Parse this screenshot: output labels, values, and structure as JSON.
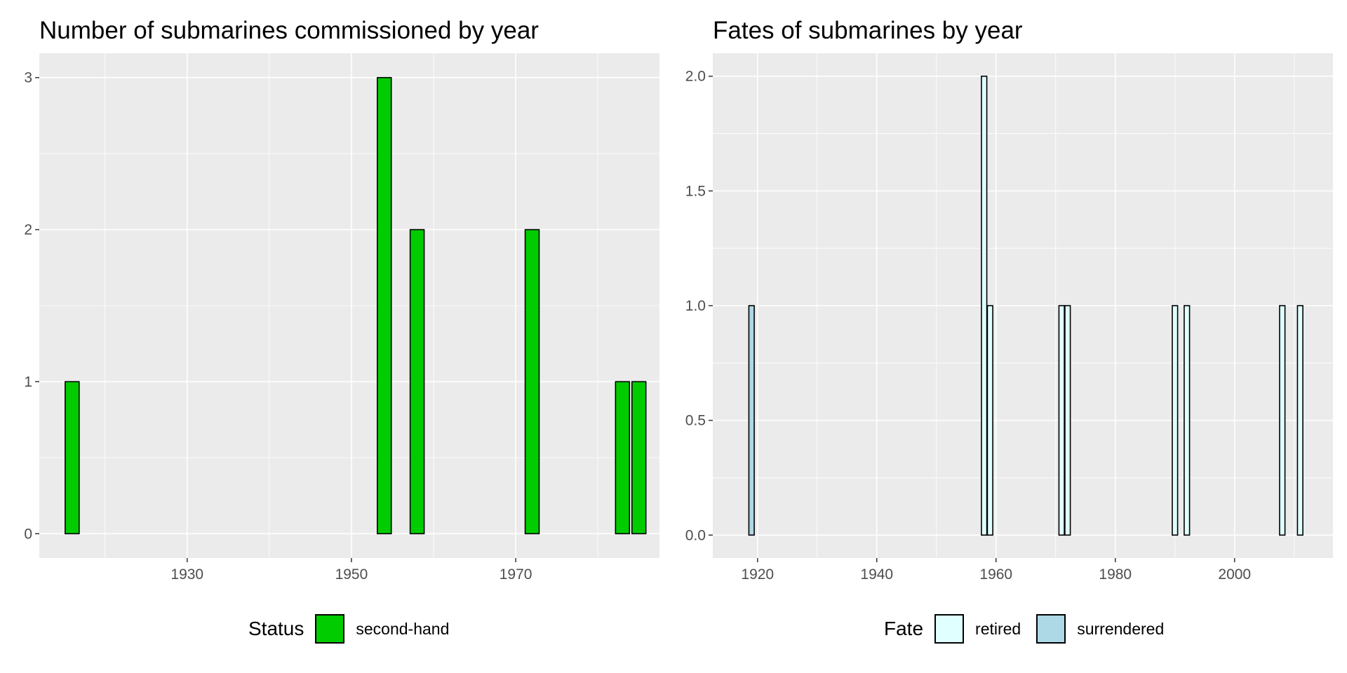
{
  "chart_data": [
    {
      "type": "bar",
      "title": "Number of submarines commissioned by year",
      "xlabel": "",
      "ylabel": "",
      "xlim": [
        1912,
        1987.5
      ],
      "ylim": [
        -0.16,
        3.16
      ],
      "x_ticks": [
        "1930",
        "1950",
        "1970"
      ],
      "y_ticks": [
        "0",
        "1",
        "2",
        "3"
      ],
      "grid": true,
      "legend_position": "bottom",
      "legend_title": "Status",
      "legend": [
        {
          "label": "second-hand",
          "color": "#00cc00"
        }
      ],
      "bar_width_years": 1.7,
      "series": [
        {
          "name": "second-hand",
          "color": "#00cc00",
          "x": [
            1916,
            1954,
            1958,
            1972,
            1983,
            1985
          ],
          "values": [
            1,
            3,
            2,
            2,
            1,
            1
          ]
        }
      ]
    },
    {
      "type": "bar",
      "title": "Fates of submarines by year",
      "xlabel": "",
      "ylabel": "",
      "xlim": [
        1912.5,
        2016.5
      ],
      "ylim": [
        -0.1,
        2.1
      ],
      "x_ticks": [
        "1920",
        "1940",
        "1960",
        "1980",
        "2000"
      ],
      "y_ticks": [
        "0.0",
        "0.5",
        "1.0",
        "1.5",
        "2.0"
      ],
      "grid": true,
      "legend_position": "bottom",
      "legend_title": "Fate",
      "legend": [
        {
          "label": "retired",
          "color": "#e0ffff"
        },
        {
          "label": "surrendered",
          "color": "#add8e6"
        }
      ],
      "bar_width_years": 0.9,
      "series": [
        {
          "name": "retired",
          "color": "#e0ffff",
          "x": [
            1958,
            1959,
            1971,
            1972,
            1990,
            1992,
            2008,
            2011
          ],
          "values": [
            2,
            1,
            1,
            1,
            1,
            1,
            1,
            1
          ]
        },
        {
          "name": "surrendered",
          "color": "#add8e6",
          "x": [
            1919
          ],
          "values": [
            1
          ]
        }
      ]
    }
  ]
}
